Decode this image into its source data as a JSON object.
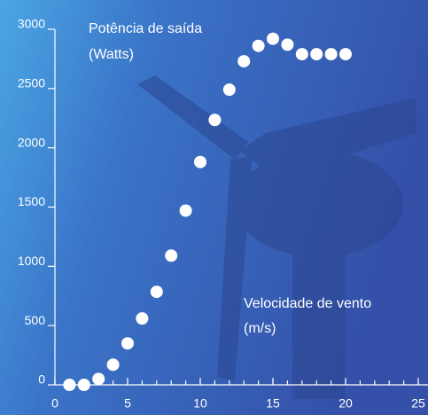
{
  "chart_data": {
    "type": "scatter",
    "y_label": [
      "Potência de saída",
      "(Watts)"
    ],
    "x_label": [
      "Velocidade de vento",
      "(m/s)"
    ],
    "x": [
      1,
      2,
      3,
      4,
      5,
      6,
      7,
      8,
      9,
      10,
      11,
      12,
      13,
      14,
      15,
      16,
      17,
      18,
      19,
      20
    ],
    "values": [
      0,
      0,
      50,
      170,
      350,
      560,
      785,
      1090,
      1470,
      1880,
      2235,
      2490,
      2730,
      2860,
      2920,
      2870,
      2790,
      2790,
      2790,
      2790
    ],
    "color": "#ffffff",
    "xlim": [
      0,
      25
    ],
    "xticks": [
      0,
      5,
      10,
      15,
      20,
      25
    ],
    "ylim": [
      0,
      3000
    ],
    "yticks": [
      0,
      500,
      1000,
      1500,
      2000,
      2500,
      3000
    ]
  }
}
